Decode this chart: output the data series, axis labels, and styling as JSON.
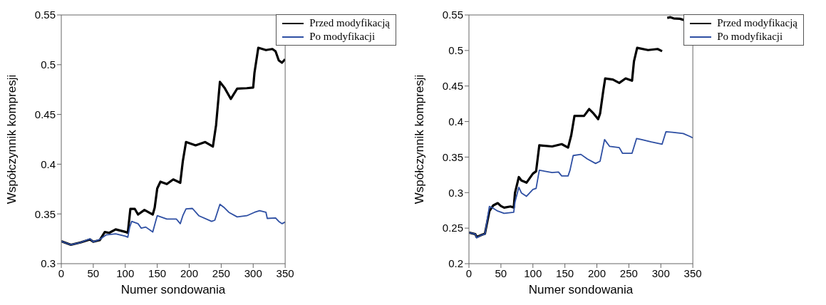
{
  "chart_data": [
    {
      "type": "line",
      "xlabel": "Numer sondowania",
      "ylabel": "Współczynnik kompresji",
      "xlim": [
        0,
        350
      ],
      "xticks": [
        0,
        50,
        100,
        150,
        200,
        250,
        300,
        350
      ],
      "ylim": [
        0.3,
        0.55
      ],
      "yticks": [
        0.3,
        0.35,
        0.4,
        0.45,
        0.5,
        0.55
      ],
      "legend": "top right",
      "line_style": "solid",
      "marker": "none",
      "series": [
        {
          "name": "Przed modyfikacją",
          "color": "#000000",
          "x": [
            0,
            15,
            30,
            45,
            50,
            60,
            68,
            75,
            85,
            100,
            104,
            108,
            115,
            120,
            130,
            143,
            146,
            150,
            155,
            165,
            175,
            186,
            190,
            195,
            210,
            225,
            237,
            242,
            248,
            255,
            265,
            275,
            290,
            300,
            302,
            308,
            320,
            330,
            335,
            340,
            345,
            350
          ],
          "values": [
            0.3225,
            0.319,
            0.3213,
            0.3243,
            0.322,
            0.3236,
            0.3318,
            0.331,
            0.3345,
            0.332,
            0.331,
            0.355,
            0.355,
            0.3494,
            0.354,
            0.3494,
            0.3562,
            0.3756,
            0.3824,
            0.38,
            0.3847,
            0.3813,
            0.403,
            0.4223,
            0.4189,
            0.4223,
            0.4177,
            0.4394,
            0.4827,
            0.477,
            0.4656,
            0.4759,
            0.4764,
            0.477,
            0.4918,
            0.517,
            0.5147,
            0.5158,
            0.5135,
            0.5044,
            0.502,
            0.5055
          ]
        },
        {
          "name": "Po modyfikacji",
          "color": "#2e4fa3",
          "x": [
            0,
            15,
            30,
            45,
            50,
            60,
            70,
            85,
            100,
            104,
            107,
            110,
            120,
            125,
            132,
            143,
            148,
            150,
            165,
            180,
            186,
            190,
            195,
            205,
            215,
            235,
            240,
            248,
            255,
            262,
            275,
            290,
            302,
            310,
            320,
            322,
            335,
            340,
            345,
            350
          ],
          "values": [
            0.3225,
            0.319,
            0.3213,
            0.325,
            0.322,
            0.3243,
            0.3289,
            0.33,
            0.3277,
            0.3266,
            0.3368,
            0.3425,
            0.3402,
            0.3357,
            0.3368,
            0.3318,
            0.3437,
            0.3482,
            0.3448,
            0.3448,
            0.3402,
            0.3482,
            0.355,
            0.3555,
            0.3482,
            0.3425,
            0.3437,
            0.3596,
            0.3562,
            0.3516,
            0.347,
            0.3482,
            0.3516,
            0.3532,
            0.3516,
            0.3455,
            0.346,
            0.3425,
            0.3402,
            0.3418
          ]
        }
      ]
    },
    {
      "type": "line",
      "xlabel": "Numer sondowania",
      "ylabel": "Współczynnik kompresji",
      "xlim": [
        0,
        350
      ],
      "xticks": [
        0,
        50,
        100,
        150,
        200,
        250,
        300,
        350
      ],
      "ylim": [
        0.2,
        0.55
      ],
      "yticks": [
        0.2,
        0.25,
        0.3,
        0.35,
        0.4,
        0.45,
        0.5,
        0.55
      ],
      "legend": "top right",
      "line_style": "solid",
      "marker": "none",
      "series": [
        {
          "name": "Przed modyfikacją",
          "color": "#000000",
          "x": [
            0,
            10,
            12,
            20,
            25,
            32,
            38,
            45,
            50,
            55,
            65,
            70,
            72,
            78,
            82,
            90,
            100,
            105,
            110,
            130,
            145,
            155,
            160,
            165,
            180,
            188,
            195,
            202,
            205,
            210,
            213,
            225,
            235,
            245,
            255,
            258,
            263,
            280,
            295,
            302,
            305,
            310,
            315,
            320,
            330,
            348,
            350
          ],
          "values": [
            0.2437,
            0.2415,
            0.2374,
            0.2406,
            0.2422,
            0.274,
            0.282,
            0.2852,
            0.2811,
            0.2789,
            0.2805,
            0.2789,
            0.2996,
            0.3219,
            0.3171,
            0.314,
            0.3267,
            0.33,
            0.3666,
            0.365,
            0.3682,
            0.3634,
            0.381,
            0.408,
            0.408,
            0.4176,
            0.4112,
            0.4033,
            0.4112,
            0.4431,
            0.4607,
            0.4591,
            0.4543,
            0.4607,
            0.4575,
            0.4846,
            0.5037,
            0.5006,
            0.5021,
            0.499,
            null,
            0.5459,
            0.5468,
            0.5452,
            0.5446,
            0.5395,
            0.5395
          ]
        },
        {
          "name": "Po modyfikacji",
          "color": "#2e4fa3",
          "x": [
            0,
            10,
            12,
            20,
            25,
            32,
            36,
            45,
            55,
            70,
            72,
            78,
            82,
            90,
            100,
            105,
            110,
            130,
            140,
            145,
            155,
            158,
            163,
            175,
            185,
            198,
            205,
            212,
            220,
            235,
            240,
            255,
            262,
            270,
            285,
            302,
            308,
            318,
            335,
            345,
            350
          ],
          "values": [
            0.2437,
            0.2415,
            0.2364,
            0.2406,
            0.2415,
            0.2805,
            0.2789,
            0.274,
            0.2709,
            0.2724,
            0.2868,
            0.3075,
            0.2996,
            0.2948,
            0.3044,
            0.306,
            0.3315,
            0.3283,
            0.329,
            0.3235,
            0.3235,
            0.3315,
            0.3522,
            0.3538,
            0.3474,
            0.341,
            0.3442,
            0.3746,
            0.365,
            0.3634,
            0.3554,
            0.3554,
            0.3761,
            0.3746,
            0.3714,
            0.3682,
            0.3857,
            0.385,
            0.3832,
            0.3793,
            0.377
          ]
        }
      ]
    }
  ]
}
